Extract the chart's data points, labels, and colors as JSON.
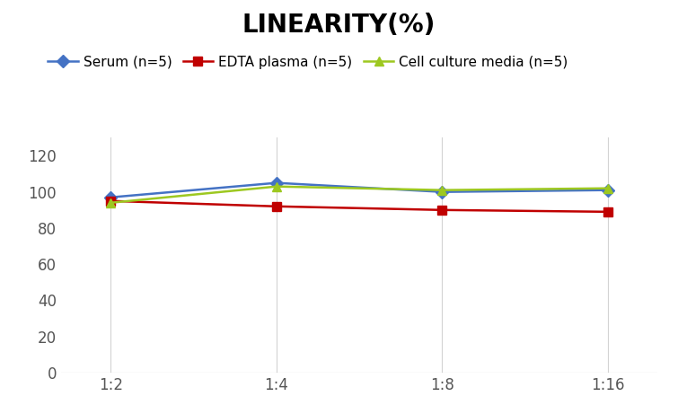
{
  "title": "LINEARITY(%)",
  "title_fontsize": 20,
  "title_fontweight": "bold",
  "x_labels": [
    "1:2",
    "1:4",
    "1:8",
    "1:16"
  ],
  "series": [
    {
      "label": "Serum (n=5)",
      "values": [
        97,
        105,
        100,
        101
      ],
      "color": "#4472C4",
      "marker": "D",
      "marker_size": 7,
      "linewidth": 1.8
    },
    {
      "label": "EDTA plasma (n=5)",
      "values": [
        95,
        92,
        90,
        89
      ],
      "color": "#C00000",
      "marker": "s",
      "marker_size": 7,
      "linewidth": 1.8
    },
    {
      "label": "Cell culture media (n=5)",
      "values": [
        94,
        103,
        101,
        102
      ],
      "color": "#9DC820",
      "marker": "^",
      "marker_size": 7,
      "linewidth": 1.8
    }
  ],
  "ylim": [
    0,
    130
  ],
  "yticks": [
    0,
    20,
    40,
    60,
    80,
    100,
    120
  ],
  "background_color": "#ffffff",
  "grid_color": "#d3d3d3",
  "legend_fontsize": 11,
  "axis_tick_fontsize": 12
}
